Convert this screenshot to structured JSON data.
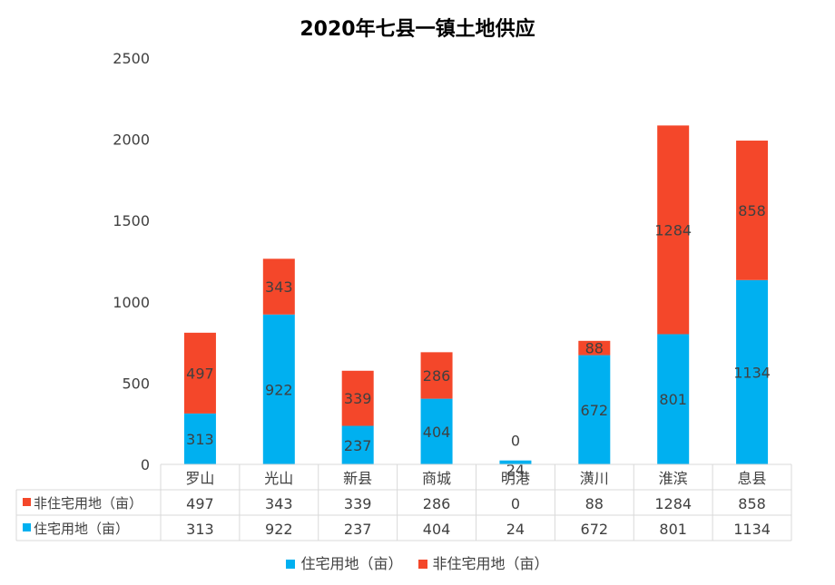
{
  "colors": {
    "residential": "#00B0F0",
    "non_residential": "#F4472A",
    "grid": "#d9d9d9",
    "label": "#404040"
  },
  "chart_data": {
    "type": "bar",
    "stacked": true,
    "title": "2020年七县一镇土地供应",
    "categories": [
      "罗山",
      "光山",
      "新县",
      "商城",
      "明港",
      "潢川",
      "淮滨",
      "息县"
    ],
    "series": [
      {
        "name": "住宅用地（亩）",
        "color": "#00B0F0",
        "values": [
          313,
          922,
          237,
          404,
          24,
          672,
          801,
          1134
        ]
      },
      {
        "name": "非住宅用地（亩）",
        "color": "#F4472A",
        "values": [
          497,
          343,
          339,
          286,
          0,
          88,
          1284,
          858
        ]
      }
    ],
    "ylim": [
      0,
      2500
    ],
    "yticks": [
      0,
      500,
      1000,
      1500,
      2000,
      2500
    ],
    "data_table": true,
    "legend": "bottom"
  }
}
